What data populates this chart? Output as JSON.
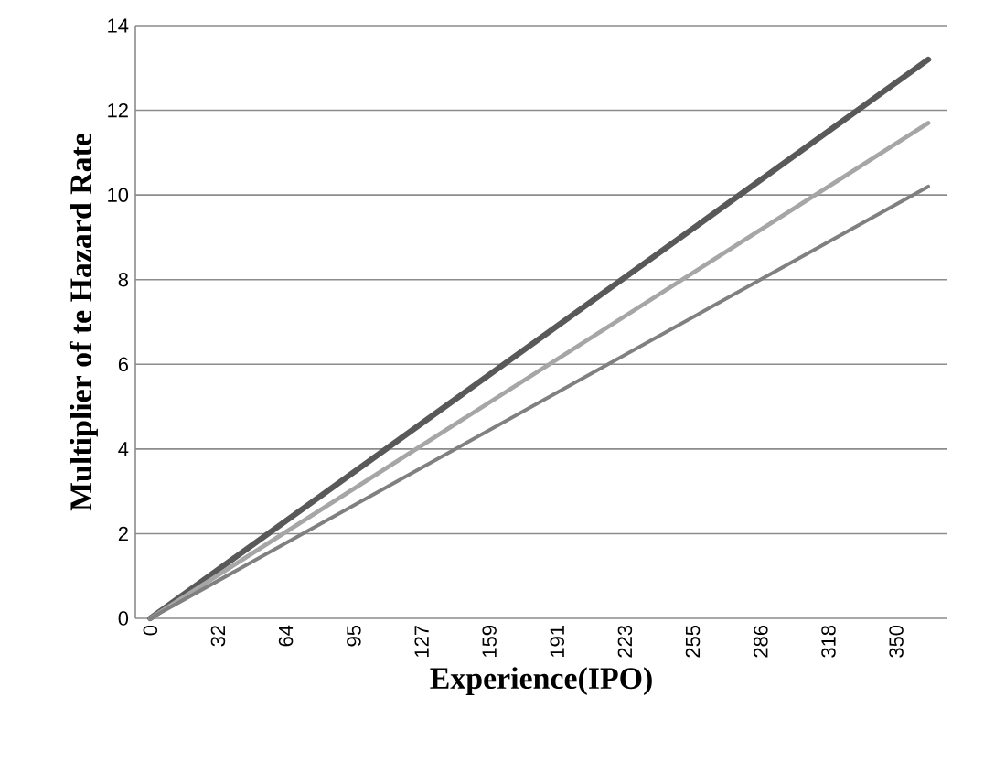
{
  "chart_data": {
    "type": "line",
    "xlabel": "Experience(IPO)",
    "ylabel": "Multiplier of te Hazard Rate",
    "xlim": [
      -7,
      374
    ],
    "ylim": [
      0,
      14
    ],
    "yticks": [
      0,
      2,
      4,
      6,
      8,
      10,
      12,
      14
    ],
    "xticks": [
      0,
      {
        "value": 31.8,
        "label": "32"
      },
      {
        "value": 63.6,
        "label": "64"
      },
      {
        "value": 95.5,
        "label": "95"
      },
      {
        "value": 127.3,
        "label": "127"
      },
      {
        "value": 159.1,
        "label": "159"
      },
      {
        "value": 190.9,
        "label": "191"
      },
      {
        "value": 222.7,
        "label": "223"
      },
      {
        "value": 254.5,
        "label": "255"
      },
      {
        "value": 286.4,
        "label": "286"
      },
      {
        "value": 318.2,
        "label": "318"
      },
      350
    ],
    "grid": "y",
    "marker": "none",
    "line_style": "solid",
    "x": [
      0,
      365
    ],
    "series": [
      {
        "color": "#595959",
        "values": [
          0,
          13.2
        ]
      },
      {
        "color": "#a6a6a6",
        "values": [
          0,
          11.7
        ]
      },
      {
        "color": "#808080",
        "values": [
          0,
          10.2
        ]
      }
    ]
  }
}
